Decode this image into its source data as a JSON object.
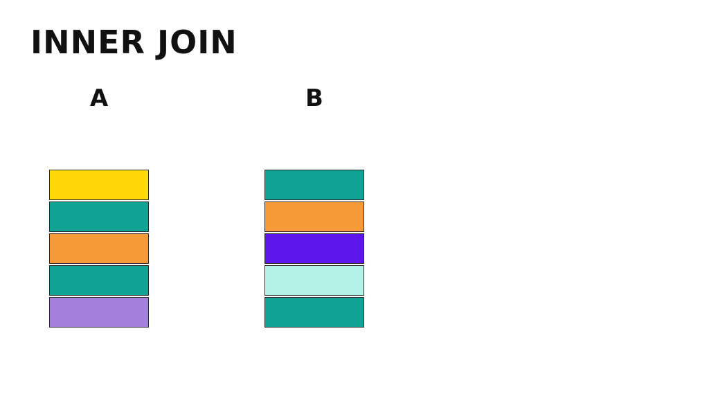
{
  "title": "INNER JOIN",
  "tables": [
    {
      "label": "A",
      "rows": [
        "#ffd90a",
        "#10a394",
        "#f69a3a",
        "#10a394",
        "#a57fdc"
      ]
    },
    {
      "label": "B",
      "rows": [
        "#10a394",
        "#f69a3a",
        "#5d17eb",
        "#b6f2ea",
        "#10a394"
      ]
    }
  ]
}
